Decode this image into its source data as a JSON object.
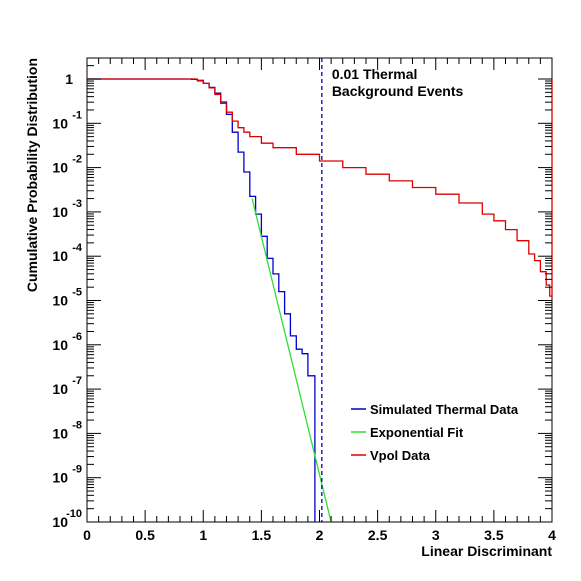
{
  "chart_data": {
    "type": "line",
    "title": "",
    "xlabel": "Linear Discriminant",
    "ylabel": "Cumulative Probability Distribution",
    "xlim": [
      0,
      4
    ],
    "ylim_log10": [
      -10,
      0.3
    ],
    "y_scale": "log",
    "grid": false,
    "x_ticks": [
      0,
      0.5,
      1,
      1.5,
      2,
      2.5,
      3,
      3.5,
      4
    ],
    "x_tick_labels": [
      "0",
      "0.5",
      "1",
      "1.5",
      "2",
      "2.5",
      "3",
      "3.5",
      "4"
    ],
    "y_ticks_log10": [
      0,
      -1,
      -2,
      -3,
      -4,
      -5,
      -6,
      -7,
      -8,
      -9,
      -10
    ],
    "y_tick_labels": [
      {
        "base": "1",
        "exp": ""
      },
      {
        "base": "10",
        "exp": "-1"
      },
      {
        "base": "10",
        "exp": "-2"
      },
      {
        "base": "10",
        "exp": "-3"
      },
      {
        "base": "10",
        "exp": "-4"
      },
      {
        "base": "10",
        "exp": "-5"
      },
      {
        "base": "10",
        "exp": "-6"
      },
      {
        "base": "10",
        "exp": "-7"
      },
      {
        "base": "10",
        "exp": "-8"
      },
      {
        "base": "10",
        "exp": "-9"
      },
      {
        "base": "10",
        "exp": "-10"
      }
    ],
    "cut_line": {
      "x": 2.02,
      "label_lines": [
        "0.01 Thermal",
        "Background Events"
      ],
      "color": "#0000cc"
    },
    "legend_position": "lower-right",
    "series": [
      {
        "name": "Simulated Thermal Data",
        "color": "#0000cc",
        "style": "step",
        "x_log10y": [
          [
            0.0,
            0.0
          ],
          [
            0.85,
            0.0
          ],
          [
            0.9,
            -0.01
          ],
          [
            0.95,
            -0.04
          ],
          [
            1.0,
            -0.1
          ],
          [
            1.05,
            -0.19
          ],
          [
            1.1,
            -0.32
          ],
          [
            1.15,
            -0.52
          ],
          [
            1.2,
            -0.8
          ],
          [
            1.25,
            -1.2
          ],
          [
            1.3,
            -1.65
          ],
          [
            1.35,
            -2.1
          ],
          [
            1.4,
            -2.65
          ],
          [
            1.45,
            -3.05
          ],
          [
            1.5,
            -3.55
          ],
          [
            1.55,
            -4.05
          ],
          [
            1.6,
            -4.4
          ],
          [
            1.65,
            -4.8
          ],
          [
            1.7,
            -5.3
          ],
          [
            1.75,
            -5.8
          ],
          [
            1.8,
            -6.1
          ],
          [
            1.85,
            -6.2
          ],
          [
            1.9,
            -6.7
          ],
          [
            1.95,
            -6.7
          ],
          [
            1.96,
            -10.0
          ]
        ]
      },
      {
        "name": "Exponential Fit",
        "color": "#33dd33",
        "style": "line",
        "x_log10y": [
          [
            1.42,
            -2.7
          ],
          [
            2.1,
            -10.0
          ]
        ]
      },
      {
        "name": "Vpol Data",
        "color": "#dd0000",
        "style": "step",
        "x_log10y": [
          [
            0.0,
            0.0
          ],
          [
            0.9,
            0.0
          ],
          [
            0.95,
            -0.03
          ],
          [
            1.0,
            -0.1
          ],
          [
            1.05,
            -0.2
          ],
          [
            1.1,
            -0.35
          ],
          [
            1.15,
            -0.55
          ],
          [
            1.2,
            -0.75
          ],
          [
            1.25,
            -0.95
          ],
          [
            1.3,
            -1.1
          ],
          [
            1.35,
            -1.2
          ],
          [
            1.4,
            -1.3
          ],
          [
            1.5,
            -1.45
          ],
          [
            1.6,
            -1.55
          ],
          [
            1.8,
            -1.7
          ],
          [
            2.0,
            -1.85
          ],
          [
            2.2,
            -2.0
          ],
          [
            2.4,
            -2.15
          ],
          [
            2.6,
            -2.3
          ],
          [
            2.8,
            -2.45
          ],
          [
            3.0,
            -2.6
          ],
          [
            3.2,
            -2.8
          ],
          [
            3.4,
            -3.05
          ],
          [
            3.5,
            -3.2
          ],
          [
            3.6,
            -3.4
          ],
          [
            3.7,
            -3.65
          ],
          [
            3.8,
            -3.95
          ],
          [
            3.85,
            -4.1
          ],
          [
            3.9,
            -4.35
          ],
          [
            3.95,
            -4.65
          ],
          [
            3.98,
            -4.9
          ],
          [
            4.0,
            -4.9
          ],
          [
            4.0,
            0.0
          ]
        ]
      }
    ]
  }
}
